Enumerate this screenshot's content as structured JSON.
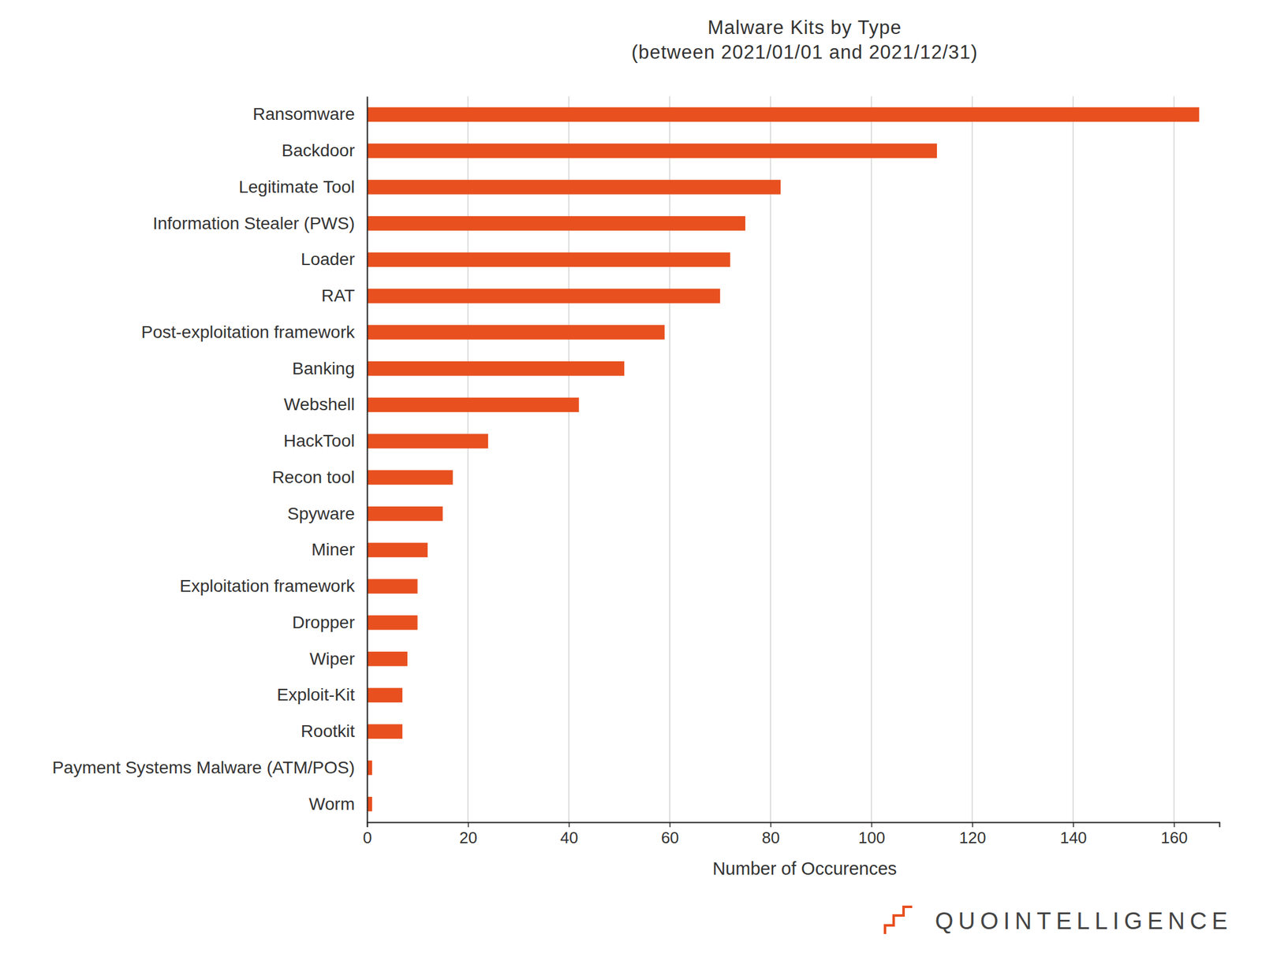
{
  "chart_data": {
    "type": "bar",
    "orientation": "horizontal",
    "title": "Malware Kits by Type",
    "subtitle": "(between 2021/01/01 and 2021/12/31)",
    "xlabel": "Number of Occurences",
    "annotations": [
      "QUOINTELLIGENCE"
    ],
    "categories": [
      "Ransomware",
      "Backdoor",
      "Legitimate Tool",
      "Information Stealer (PWS)",
      "Loader",
      "RAT",
      "Post-exploitation framework",
      "Banking",
      "Webshell",
      "HackTool",
      "Recon tool",
      "Spyware",
      "Miner",
      "Exploitation framework",
      "Dropper",
      "Wiper",
      "Exploit-Kit",
      "Rootkit",
      "Payment Systems Malware (ATM/POS)",
      "Worm"
    ],
    "values": [
      165,
      113,
      82,
      75,
      72,
      70,
      59,
      51,
      42,
      24,
      17,
      15,
      12,
      10,
      10,
      8,
      7,
      7,
      1,
      1
    ],
    "color": "#e8501f",
    "xlim": [
      0,
      169
    ],
    "xticks": [
      0,
      20,
      40,
      60,
      80,
      100,
      120,
      140,
      160
    ],
    "grid": true
  }
}
